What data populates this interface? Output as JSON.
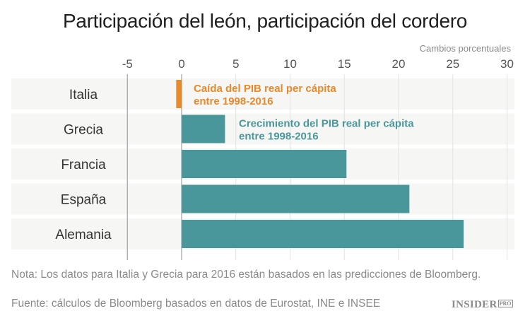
{
  "chart_data": {
    "type": "bar",
    "orientation": "horizontal",
    "title": "Participación del león, participación del cordero",
    "xlabel": "Cambios porcentuales",
    "ylabel": "",
    "categories": [
      "Italia",
      "Grecia",
      "Francia",
      "España",
      "Alemania"
    ],
    "values": [
      -0.5,
      4.0,
      15.2,
      21.0,
      26.0
    ],
    "xlim": [
      -5,
      30
    ],
    "xticks": [
      -5,
      0,
      5,
      10,
      15,
      20,
      25,
      30
    ],
    "grid": true,
    "colors": {
      "negative": "#e8892b",
      "positive": "#4a979b"
    },
    "annotations": [
      {
        "category": "Italia",
        "lines": [
          "Caída del PIB real per cápita",
          "entre 1998-2016"
        ],
        "color": "#e8892b"
      },
      {
        "category": "Grecia",
        "lines": [
          "Crecimiento del PIB real per cápita",
          "entre 1998-2016"
        ],
        "color": "#4a979b"
      }
    ]
  },
  "note": "Nota: Los datos para Italia y Grecia para 2016 están basados en las predicciones de Bloomberg.",
  "source": "Fuente: cálculos de Bloomberg basados en datos de Eurostat, INE e INSEE",
  "logo": {
    "main": "INSIDER",
    "sub": "PRO"
  }
}
